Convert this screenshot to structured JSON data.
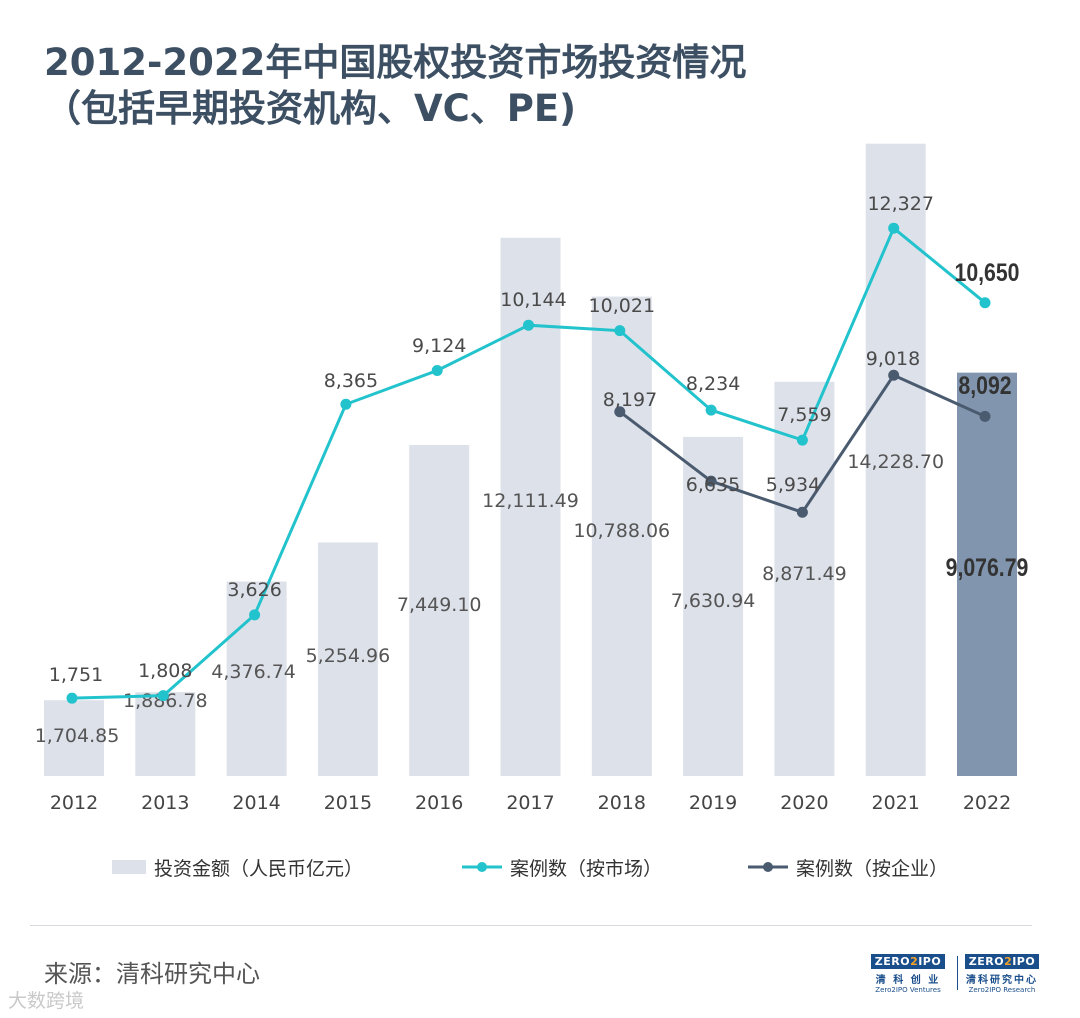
{
  "title": {
    "line1": "2012-2022年中国股权投资市场投资情况",
    "line2": "（包括早期投资机构、VC、PE)"
  },
  "chart_data": {
    "type": "bar+line",
    "categories": [
      "2012",
      "2013",
      "2014",
      "2015",
      "2016",
      "2017",
      "2018",
      "2019",
      "2020",
      "2021",
      "2022"
    ],
    "ylim": [
      0,
      17000
    ],
    "series": [
      {
        "name": "投资金额（人民币亿元）",
        "kind": "bar",
        "color": "#dde1ea",
        "highlight_color": "#8196ae",
        "values": [
          1704.85,
          1886.78,
          4376.74,
          5254.96,
          7449.1,
          12111.49,
          10788.06,
          7630.94,
          8871.49,
          14228.7,
          9076.79
        ],
        "labels": [
          "1,704.85",
          "1,886.78",
          "4,376.74",
          "5,254.96",
          "7,449.10",
          "12,111.49",
          "10,788.06",
          "7,630.94",
          "8,871.49",
          "14,228.70",
          "9,076.79"
        ]
      },
      {
        "name": "案例数（按市场）",
        "kind": "line",
        "color": "#22c3cc",
        "values": [
          1751,
          1808,
          3626,
          8365,
          9124,
          10144,
          10021,
          8234,
          7559,
          12327,
          10650
        ],
        "labels": [
          "1,751",
          "1,808",
          "3,626",
          "8,365",
          "9,124",
          "10,144",
          "10,021",
          "8,234",
          "7,559",
          "12,327",
          "10,650"
        ]
      },
      {
        "name": "案例数（按企业）",
        "kind": "line",
        "color": "#4a5b70",
        "values": [
          null,
          null,
          null,
          null,
          null,
          null,
          8197,
          6635,
          5934,
          9018,
          8092
        ],
        "labels": [
          null,
          null,
          null,
          null,
          null,
          null,
          "8,197",
          "6,635",
          "5,934",
          "9,018",
          "8,092"
        ]
      }
    ],
    "highlight_category": "2022"
  },
  "legend": {
    "bar_label": "投资金额（人民币亿元）",
    "line1_label": "案例数（按市场）",
    "line2_label": "案例数（按企业）"
  },
  "source": "来源：清科研究中心",
  "watermark": "大数跨境",
  "logos": {
    "ventures": {
      "word": "ZERO",
      "digit": "2",
      "tail": "IPO",
      "cn": "清 科 创 业",
      "en": "Zero2IPO Ventures"
    },
    "research": {
      "word": "ZERO",
      "digit": "2",
      "tail": "IPO",
      "cn": "清科研究中心",
      "en": "Zero2IPO Research"
    }
  }
}
